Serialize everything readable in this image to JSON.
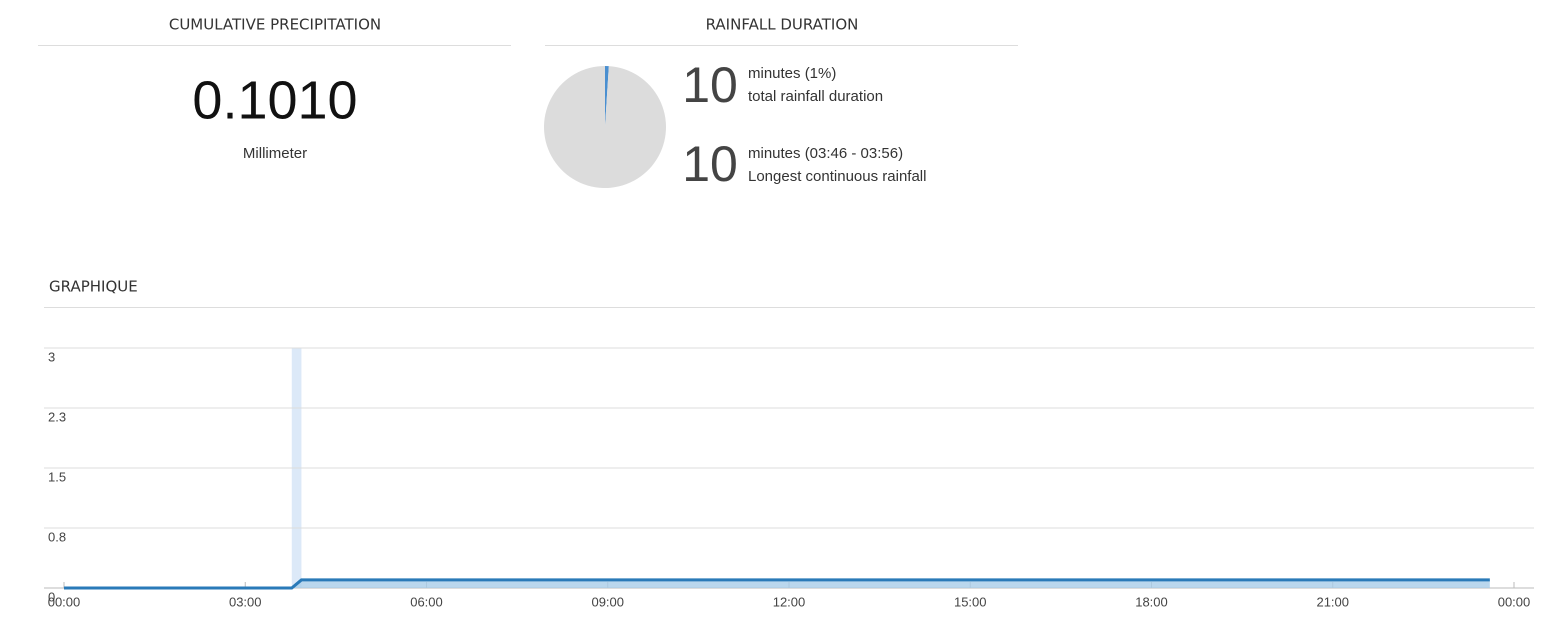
{
  "panels": {
    "cumulative": {
      "title": "CUMULATIVE PRECIPITATION",
      "value": "0.1010",
      "unit": "Millimeter"
    },
    "duration": {
      "title": "RAINFALL DURATION",
      "stats": [
        {
          "number": "10",
          "line1": "minutes (1%)",
          "line2": "total rainfall duration"
        },
        {
          "number": "10",
          "line1": "minutes (03:46 - 03:56)",
          "line2": "Longest continuous rainfall"
        }
      ]
    }
  },
  "chart_data": [
    {
      "type": "pie",
      "values": [
        1,
        99
      ],
      "colors": [
        "#4a8fd0",
        "#dcdcdc"
      ]
    },
    {
      "type": "line",
      "title": "GRAPHIQUE",
      "x": [
        0,
        3.77,
        3.93,
        23.6
      ],
      "series": [
        {
          "color": "#2a7ab8",
          "fill": "#a9cde9",
          "values": [
            0,
            0,
            0.101,
            0.101
          ]
        }
      ],
      "highlight": [
        3.77,
        3.93
      ],
      "highlight_color": "#dce9f8",
      "xlim": [
        0,
        24
      ],
      "xticks": [
        {
          "value": 0,
          "label": "00:00"
        },
        {
          "value": 3,
          "label": "03:00"
        },
        {
          "value": 6,
          "label": "06:00"
        },
        {
          "value": 9,
          "label": "09:00"
        },
        {
          "value": 12,
          "label": "12:00"
        },
        {
          "value": 15,
          "label": "15:00"
        },
        {
          "value": 18,
          "label": "18:00"
        },
        {
          "value": 21,
          "label": "21:00"
        },
        {
          "value": 24,
          "label": "00:00"
        }
      ],
      "ylim": [
        0,
        3
      ],
      "yticks": [
        0,
        {
          "value": 0.75,
          "label": "0.8"
        },
        1.5,
        {
          "value": 2.25,
          "label": "2.3"
        },
        3
      ],
      "grid": true
    }
  ]
}
